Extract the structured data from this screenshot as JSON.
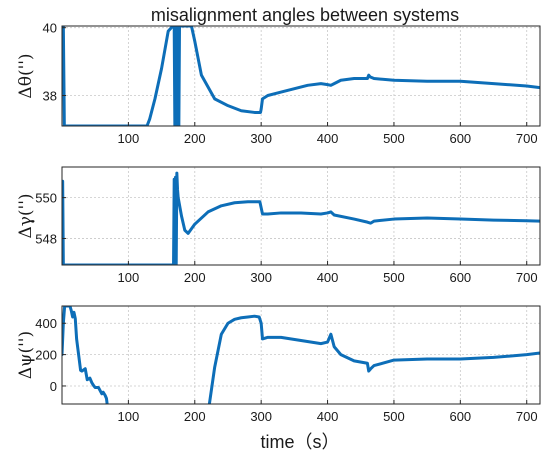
{
  "title": "misalignment angles between systems",
  "xlabel": "time（s）",
  "chart_data": [
    {
      "type": "line",
      "ylabel": "Δθ('')",
      "xlim": [
        0,
        720
      ],
      "ylim": [
        37.1,
        40.05
      ],
      "xticks": [
        100,
        200,
        300,
        400,
        500,
        600,
        700
      ],
      "yticks": [
        38,
        40
      ],
      "grid": true,
      "color": "#0d6eb8",
      "series": [
        {
          "x": [
            0,
            1,
            2,
            3,
            3.5,
            4,
            5,
            128,
            132,
            140,
            150,
            160,
            167,
            169,
            170,
            171,
            172,
            173,
            174,
            175,
            176,
            177,
            178,
            180,
            190,
            195,
            200,
            210,
            230,
            250,
            270,
            290,
            297,
            299,
            300,
            302,
            310,
            330,
            350,
            370,
            390,
            400,
            405,
            410,
            420,
            440,
            460,
            462,
            464,
            470,
            500,
            550,
            600,
            650,
            700,
            720
          ],
          "y": [
            39.1,
            39.6,
            40.05,
            38.2,
            37.1,
            37.1,
            37.1,
            37.1,
            37.3,
            37.9,
            38.8,
            39.9,
            40.05,
            40.05,
            37.1,
            40.05,
            37.1,
            40.05,
            37.1,
            40.05,
            37.1,
            40.05,
            40.05,
            40.05,
            40.05,
            40.05,
            39.6,
            38.6,
            37.9,
            37.7,
            37.55,
            37.5,
            37.5,
            37.5,
            37.6,
            37.9,
            38.0,
            38.1,
            38.2,
            38.3,
            38.35,
            38.32,
            38.3,
            38.35,
            38.45,
            38.5,
            38.5,
            38.6,
            38.55,
            38.5,
            38.45,
            38.42,
            38.42,
            38.35,
            38.28,
            38.23
          ]
        }
      ]
    },
    {
      "type": "line",
      "ylabel": "Δγ('')",
      "xlim": [
        0,
        720
      ],
      "ylim": [
        546.7,
        551.5
      ],
      "xticks": [
        100,
        200,
        300,
        400,
        500,
        600,
        700
      ],
      "yticks": [
        548,
        550
      ],
      "grid": true,
      "color": "#0d6eb8",
      "series": [
        {
          "x": [
            0,
            1,
            2,
            3,
            5,
            168,
            169,
            170,
            171,
            172,
            173,
            174,
            175,
            180,
            185,
            190,
            200,
            220,
            240,
            260,
            280,
            298,
            300,
            302,
            310,
            330,
            360,
            390,
            400,
            405,
            410,
            440,
            460,
            465,
            470,
            500,
            550,
            600,
            650,
            700,
            720
          ],
          "y": [
            548.2,
            550.8,
            546.7,
            546.7,
            546.7,
            546.7,
            550.9,
            546.7,
            551.0,
            546.7,
            551.2,
            550.4,
            550.0,
            549.1,
            548.4,
            548.25,
            548.7,
            549.3,
            549.6,
            549.75,
            549.8,
            549.8,
            549.5,
            549.2,
            549.2,
            549.25,
            549.25,
            549.2,
            549.25,
            549.3,
            549.15,
            548.95,
            548.8,
            548.75,
            548.85,
            548.95,
            549.0,
            548.95,
            548.9,
            548.87,
            548.85
          ]
        }
      ]
    },
    {
      "type": "line",
      "ylabel": "Δψ('')",
      "xlim": [
        0,
        720
      ],
      "ylim": [
        -115,
        510
      ],
      "xticks": [
        100,
        200,
        300,
        400,
        500,
        600,
        700
      ],
      "yticks": [
        0,
        200,
        400
      ],
      "grid": true,
      "color": "#0d6eb8",
      "series": [
        {
          "x": [
            0,
            2,
            4,
            6,
            8,
            10,
            12,
            14,
            16,
            18,
            20,
            22,
            25,
            28,
            30,
            35,
            38,
            42,
            45,
            48,
            50,
            55,
            60,
            62,
            65,
            67,
            68
          ],
          "y": [
            200,
            400,
            510,
            510,
            510,
            510,
            510,
            480,
            440,
            470,
            430,
            300,
            200,
            100,
            95,
            110,
            40,
            50,
            20,
            0,
            -10,
            -10,
            -50,
            -40,
            -60,
            -80,
            -115
          ]
        },
        {
          "x": [
            222,
            230,
            240,
            250,
            260,
            270,
            280,
            290,
            297,
            300,
            302,
            310,
            330,
            360,
            390,
            400,
            405,
            410,
            420,
            440,
            460,
            462,
            465,
            470,
            500,
            550,
            600,
            650,
            700,
            720
          ],
          "y": [
            -115,
            120,
            330,
            400,
            425,
            435,
            440,
            445,
            440,
            400,
            300,
            310,
            310,
            290,
            270,
            280,
            330,
            250,
            200,
            160,
            145,
            95,
            110,
            130,
            165,
            172,
            172,
            182,
            200,
            210
          ]
        }
      ]
    }
  ]
}
